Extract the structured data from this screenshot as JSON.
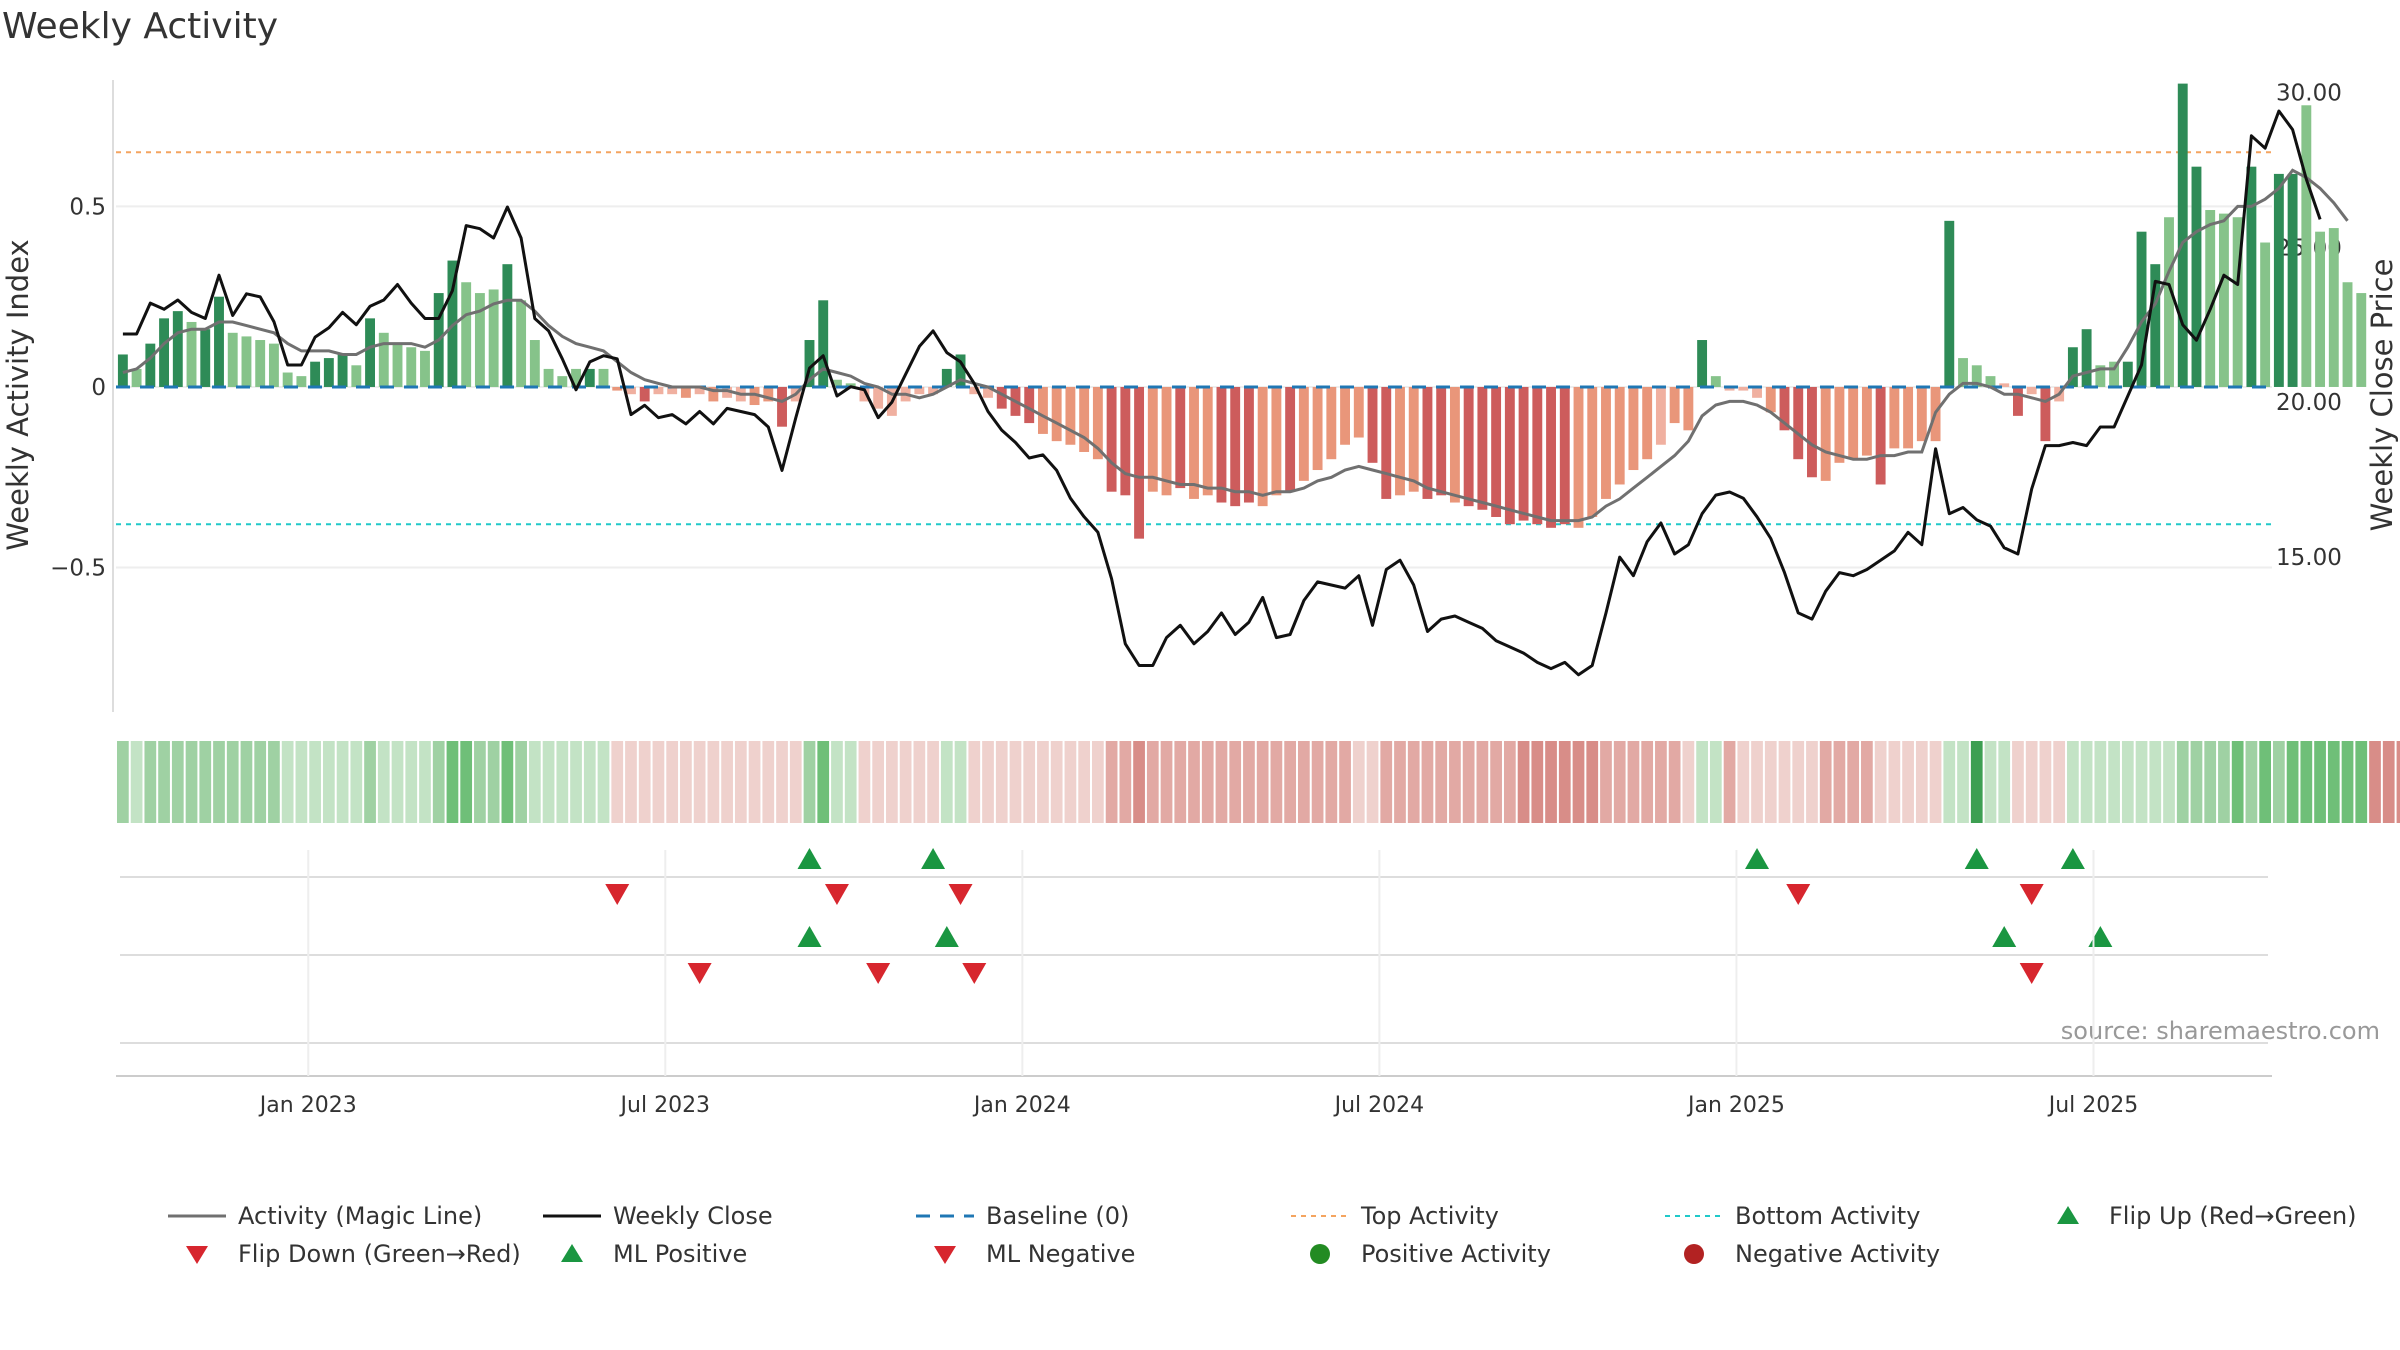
{
  "chart_data": {
    "type": "bar",
    "title": "Weekly Activity",
    "ylabel_left": "Weekly Activity Index",
    "ylabel_right": "Weekly Close Price",
    "source": "source: sharemaestro.com",
    "left_yticks": [
      {
        "value": 0.5,
        "label": "0.5"
      },
      {
        "value": 0,
        "label": "0"
      },
      {
        "value": -0.5,
        "label": "−0.5"
      }
    ],
    "right_yticks": [
      {
        "value": 30,
        "label": "30.00"
      },
      {
        "value": 25,
        "label": "25.00"
      },
      {
        "value": 20,
        "label": "20.00"
      },
      {
        "value": 15,
        "label": "15.00"
      }
    ],
    "left_ylim": [
      -0.9,
      0.85
    ],
    "right_ylim": [
      10.0,
      30.4
    ],
    "xticks": [
      {
        "week": 14,
        "label": "Jan 2023"
      },
      {
        "week": 40,
        "label": "Jul 2023"
      },
      {
        "week": 66,
        "label": "Jan 2024"
      },
      {
        "week": 92,
        "label": "Jul 2024"
      },
      {
        "week": 118,
        "label": "Jan 2025"
      },
      {
        "week": 144,
        "label": "Jul 2025"
      }
    ],
    "top_activity": 0.65,
    "bottom_activity": -0.38,
    "weeks": 157,
    "activity": [
      0.09,
      0.05,
      0.12,
      0.19,
      0.21,
      0.18,
      0.16,
      0.25,
      0.15,
      0.14,
      0.13,
      0.12,
      0.04,
      0.03,
      0.07,
      0.08,
      0.09,
      0.06,
      0.19,
      0.15,
      0.12,
      0.11,
      0.1,
      0.26,
      0.35,
      0.29,
      0.26,
      0.27,
      0.34,
      0.24,
      0.13,
      0.05,
      0.03,
      0.05,
      0.05,
      0.05,
      -0.01,
      -0.02,
      -0.04,
      -0.02,
      -0.02,
      -0.03,
      -0.02,
      -0.04,
      -0.03,
      -0.04,
      -0.05,
      -0.04,
      -0.11,
      -0.04,
      0.13,
      0.24,
      0.02,
      0.01,
      -0.04,
      -0.06,
      -0.08,
      -0.04,
      -0.02,
      -0.02,
      0.05,
      0.09,
      -0.02,
      -0.03,
      -0.06,
      -0.08,
      -0.1,
      -0.13,
      -0.15,
      -0.16,
      -0.18,
      -0.2,
      -0.29,
      -0.3,
      -0.42,
      -0.29,
      -0.3,
      -0.28,
      -0.31,
      -0.3,
      -0.32,
      -0.33,
      -0.32,
      -0.33,
      -0.3,
      -0.29,
      -0.26,
      -0.23,
      -0.2,
      -0.16,
      -0.14,
      -0.21,
      -0.31,
      -0.3,
      -0.29,
      -0.31,
      -0.3,
      -0.32,
      -0.33,
      -0.34,
      -0.36,
      -0.38,
      -0.37,
      -0.38,
      -0.39,
      -0.38,
      -0.39,
      -0.36,
      -0.31,
      -0.27,
      -0.23,
      -0.2,
      -0.16,
      -0.1,
      -0.12,
      0.13,
      0.03,
      -0.01,
      -0.01,
      -0.03,
      -0.07,
      -0.12,
      -0.2,
      -0.25,
      -0.26,
      -0.21,
      -0.2,
      -0.19,
      -0.27,
      -0.17,
      -0.17,
      -0.15,
      -0.15,
      0.46,
      0.08,
      0.06,
      0.03,
      0.01,
      -0.08,
      -0.02,
      -0.15,
      -0.04,
      0.11,
      0.16,
      0.06,
      0.07,
      0.07,
      0.43,
      0.34,
      0.47,
      0.84,
      0.61,
      0.49,
      0.48,
      0.47,
      0.61,
      0.4,
      0.59,
      0.59,
      0.78,
      0.43,
      0.44,
      0.29,
      0.26
    ],
    "bar_type": [
      "g3",
      "g1",
      "g3",
      "g3",
      "g3",
      "g1",
      "g3",
      "g3",
      "g1",
      "g1",
      "g1",
      "g1",
      "g1",
      "g1",
      "g3",
      "g3",
      "g3",
      "g1",
      "g3",
      "g1",
      "g1",
      "g1",
      "g1",
      "g3",
      "g3",
      "g1",
      "g1",
      "g1",
      "g3",
      "g1",
      "g1",
      "g1",
      "g1",
      "g1",
      "g3",
      "g1",
      "r2",
      "r1",
      "r3",
      "r1",
      "r1",
      "r2",
      "r1",
      "r2",
      "r1",
      "r1",
      "r2",
      "r2",
      "r3",
      "r1",
      "g3",
      "g3",
      "g1",
      "g1",
      "r1",
      "r1",
      "r1",
      "r1",
      "r1",
      "r1",
      "g3",
      "g3",
      "r1",
      "r1",
      "r3",
      "r3",
      "r3",
      "r2",
      "r2",
      "r2",
      "r2",
      "r2",
      "r3",
      "r3",
      "r3",
      "r2",
      "r2",
      "r3",
      "r2",
      "r2",
      "r3",
      "r3",
      "r3",
      "r2",
      "r2",
      "r3",
      "r2",
      "r2",
      "r2",
      "r2",
      "r2",
      "r3",
      "r3",
      "r2",
      "r2",
      "r3",
      "r3",
      "r2",
      "r3",
      "r3",
      "r3",
      "r3",
      "r3",
      "r3",
      "r3",
      "r3",
      "r2",
      "r2",
      "r2",
      "r2",
      "r2",
      "r2",
      "r1",
      "r2",
      "r2",
      "g3",
      "g1",
      "r1",
      "r1",
      "r1",
      "r2",
      "r3",
      "r3",
      "r3",
      "r2",
      "r2",
      "r2",
      "r2",
      "r3",
      "r2",
      "r2",
      "r2",
      "r2",
      "g3",
      "g1",
      "g1",
      "g1",
      "r1",
      "r3",
      "r1",
      "r3",
      "r1",
      "g3",
      "g3",
      "g1",
      "g1",
      "g3",
      "g3",
      "g3",
      "g1",
      "g3",
      "g3",
      "g1",
      "g1",
      "g1",
      "g3",
      "g1",
      "g3",
      "g3",
      "g1",
      "g1",
      "g1",
      "g1",
      "g1"
    ],
    "magic_line": [
      0.04,
      0.05,
      0.08,
      0.12,
      0.15,
      0.16,
      0.16,
      0.18,
      0.18,
      0.17,
      0.16,
      0.15,
      0.12,
      0.1,
      0.1,
      0.1,
      0.09,
      0.09,
      0.11,
      0.12,
      0.12,
      0.12,
      0.11,
      0.13,
      0.17,
      0.2,
      0.21,
      0.23,
      0.24,
      0.24,
      0.21,
      0.17,
      0.14,
      0.12,
      0.11,
      0.1,
      0.07,
      0.04,
      0.02,
      0.01,
      0.0,
      0.0,
      0.0,
      -0.01,
      -0.01,
      -0.02,
      -0.02,
      -0.03,
      -0.04,
      -0.02,
      0.02,
      0.05,
      0.04,
      0.03,
      0.01,
      0.0,
      -0.02,
      -0.02,
      -0.03,
      -0.02,
      0.0,
      0.02,
      0.01,
      0.0,
      -0.02,
      -0.04,
      -0.06,
      -0.08,
      -0.1,
      -0.12,
      -0.14,
      -0.17,
      -0.21,
      -0.24,
      -0.25,
      -0.25,
      -0.26,
      -0.27,
      -0.27,
      -0.28,
      -0.28,
      -0.29,
      -0.29,
      -0.3,
      -0.29,
      -0.29,
      -0.28,
      -0.26,
      -0.25,
      -0.23,
      -0.22,
      -0.23,
      -0.24,
      -0.25,
      -0.26,
      -0.28,
      -0.29,
      -0.3,
      -0.31,
      -0.32,
      -0.33,
      -0.34,
      -0.35,
      -0.36,
      -0.37,
      -0.37,
      -0.37,
      -0.36,
      -0.33,
      -0.31,
      -0.28,
      -0.25,
      -0.22,
      -0.19,
      -0.15,
      -0.08,
      -0.05,
      -0.04,
      -0.04,
      -0.05,
      -0.07,
      -0.1,
      -0.13,
      -0.16,
      -0.18,
      -0.19,
      -0.2,
      -0.2,
      -0.19,
      -0.19,
      -0.18,
      -0.18,
      -0.07,
      -0.02,
      0.01,
      0.01,
      0.0,
      -0.02,
      -0.02,
      -0.03,
      -0.04,
      -0.02,
      0.03,
      0.04,
      0.05,
      0.05,
      0.11,
      0.18,
      0.23,
      0.32,
      0.4,
      0.43,
      0.45,
      0.46,
      0.5,
      0.5,
      0.52,
      0.55,
      0.6,
      0.58,
      0.55,
      0.51,
      0.46
    ],
    "weekly_close": [
      22.2,
      22.2,
      23.2,
      23.0,
      23.3,
      22.9,
      22.7,
      24.1,
      22.8,
      23.5,
      23.4,
      22.6,
      21.2,
      21.2,
      22.1,
      22.4,
      22.9,
      22.5,
      23.1,
      23.3,
      23.8,
      23.2,
      22.7,
      22.7,
      23.6,
      25.7,
      25.6,
      25.3,
      26.3,
      25.3,
      22.7,
      22.3,
      21.4,
      20.4,
      21.3,
      21.5,
      21.4,
      19.6,
      19.9,
      19.5,
      19.6,
      19.3,
      19.7,
      19.3,
      19.8,
      19.7,
      19.6,
      19.2,
      17.8,
      19.5,
      21.1,
      21.5,
      20.2,
      20.5,
      20.4,
      19.5,
      20.0,
      20.9,
      21.8,
      22.3,
      21.6,
      21.3,
      20.6,
      19.7,
      19.1,
      18.7,
      18.2,
      18.3,
      17.8,
      16.9,
      16.3,
      15.8,
      14.3,
      12.2,
      11.5,
      11.5,
      12.4,
      12.8,
      12.2,
      12.6,
      13.2,
      12.5,
      12.9,
      13.7,
      12.4,
      12.5,
      13.6,
      14.2,
      14.1,
      14.0,
      14.4,
      12.8,
      14.6,
      14.9,
      14.1,
      12.6,
      13.0,
      13.1,
      12.9,
      12.7,
      12.3,
      12.1,
      11.9,
      11.6,
      11.4,
      11.6,
      11.2,
      11.5,
      13.2,
      15.0,
      14.4,
      15.5,
      16.1,
      15.1,
      15.4,
      16.4,
      17.0,
      17.1,
      16.9,
      16.3,
      15.6,
      14.5,
      13.2,
      13.0,
      13.9,
      14.5,
      14.4,
      14.6,
      14.9,
      15.2,
      15.8,
      15.4,
      18.5,
      16.4,
      16.6,
      16.2,
      16.0,
      15.3,
      15.1,
      17.2,
      18.6,
      18.6,
      18.7,
      18.6,
      19.2,
      19.2,
      20.2,
      21.2,
      23.9,
      23.8,
      22.5,
      22.0,
      23.0,
      24.1,
      23.8,
      28.6,
      28.2,
      29.4,
      28.8,
      27.2,
      25.9
    ],
    "heat_strip": [
      2,
      1,
      2,
      2,
      2,
      2,
      2,
      2,
      2,
      2,
      2,
      2,
      1,
      1,
      1,
      1,
      1,
      1,
      2,
      1,
      1,
      1,
      1,
      2,
      3,
      3,
      2,
      2,
      3,
      2,
      1,
      1,
      1,
      1,
      1,
      1,
      1,
      1,
      1,
      1,
      1,
      1,
      1,
      1,
      1,
      1,
      1,
      1,
      1,
      1,
      2,
      3,
      1,
      1,
      1,
      1,
      1,
      1,
      1,
      1,
      1,
      1,
      1,
      1,
      1,
      1,
      1,
      1,
      1,
      1,
      1,
      1,
      2,
      2,
      3,
      2,
      2,
      2,
      2,
      2,
      2,
      2,
      2,
      2,
      2,
      2,
      2,
      2,
      2,
      2,
      1,
      1,
      2,
      2,
      2,
      2,
      2,
      2,
      2,
      2,
      2,
      2,
      3,
      3,
      3,
      3,
      3,
      3,
      2,
      2,
      2,
      2,
      2,
      2,
      1,
      1,
      1,
      2,
      1,
      1,
      1,
      1,
      1,
      1,
      2,
      2,
      2,
      2,
      1,
      1,
      1,
      1,
      1,
      1,
      1,
      4,
      1,
      1,
      1,
      1,
      1,
      1,
      1,
      1,
      1,
      1,
      1,
      1,
      1,
      1,
      2,
      2,
      2,
      2,
      3,
      2,
      3,
      2,
      3,
      3,
      3,
      3,
      3,
      3,
      4,
      3,
      3,
      2,
      2,
      1,
      1
    ],
    "flip_up": [
      50,
      59,
      119,
      135,
      142
    ],
    "flip_down": [
      36,
      52,
      61,
      122,
      139
    ],
    "ml_positive": [
      50,
      60,
      137,
      144
    ],
    "ml_negative": [
      42,
      55,
      62,
      139
    ],
    "legend": [
      {
        "label": "Activity (Magic Line)",
        "sym": "line-gray"
      },
      {
        "label": "Weekly Close",
        "sym": "line-black"
      },
      {
        "label": "Baseline (0)",
        "sym": "dash-blue"
      },
      {
        "label": "Top Activity",
        "sym": "dot-orange"
      },
      {
        "label": "Bottom Activity",
        "sym": "dot-cyan"
      },
      {
        "label": "Flip Up (Red→Green)",
        "sym": "tri-up"
      },
      {
        "label": "Flip Down (Green→Red)",
        "sym": "tri-down"
      },
      {
        "label": "ML Positive",
        "sym": "tri-up"
      },
      {
        "label": "ML Negative",
        "sym": "tri-down"
      },
      {
        "label": "Positive Activity",
        "sym": "circle-green"
      },
      {
        "label": "Negative Activity",
        "sym": "circle-red"
      }
    ],
    "colors": {
      "g3": "#2e8b57",
      "g1": "#86c38a",
      "r3": "#cd5c5c",
      "r2": "#e9967a",
      "r1": "#f0b0a0",
      "magic_line": "#707070",
      "weekly_close": "#111111",
      "baseline": "#1f77b4",
      "top": "#f4a460",
      "bottom": "#20c9c9",
      "tri_up": "#1a9641",
      "tri_down": "#d7262e",
      "pos_dot": "#228b22",
      "neg_dot": "#b22222"
    }
  }
}
